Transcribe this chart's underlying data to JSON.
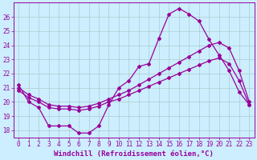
{
  "xlabel": "Windchill (Refroidissement éolien,°C)",
  "bg_color": "#cceeff",
  "line_color": "#990099",
  "grid_color": "#aacccc",
  "xlim": [
    -0.5,
    23.5
  ],
  "ylim": [
    17.5,
    27.0
  ],
  "xticks": [
    0,
    1,
    2,
    3,
    4,
    5,
    6,
    7,
    8,
    9,
    10,
    11,
    12,
    13,
    14,
    15,
    16,
    17,
    18,
    19,
    20,
    21,
    22,
    23
  ],
  "yticks": [
    18,
    19,
    20,
    21,
    22,
    23,
    24,
    25,
    26
  ],
  "series1_x": [
    0,
    1,
    2,
    3,
    4,
    5,
    6,
    7,
    8,
    9,
    10,
    11,
    12,
    13,
    14,
    15,
    16,
    17,
    18,
    19,
    20,
    21,
    22,
    23
  ],
  "series1_y": [
    21.2,
    20.0,
    19.6,
    18.3,
    18.3,
    18.3,
    17.8,
    17.8,
    18.3,
    19.8,
    21.0,
    21.5,
    22.5,
    22.7,
    24.5,
    26.2,
    26.6,
    26.2,
    25.7,
    24.4,
    23.3,
    22.2,
    20.7,
    19.8
  ],
  "series2_x": [
    0,
    1,
    2,
    3,
    4,
    5,
    6,
    7,
    8,
    9,
    10,
    11,
    12,
    13,
    14,
    15,
    16,
    17,
    18,
    19,
    20,
    21,
    22,
    23
  ],
  "series2_y": [
    21.0,
    20.5,
    20.2,
    19.8,
    19.7,
    19.7,
    19.6,
    19.7,
    19.9,
    20.2,
    20.5,
    20.8,
    21.2,
    21.6,
    22.0,
    22.4,
    22.8,
    23.2,
    23.6,
    24.0,
    24.2,
    23.8,
    22.2,
    20.0
  ],
  "series3_x": [
    0,
    1,
    2,
    3,
    4,
    5,
    6,
    7,
    8,
    9,
    10,
    11,
    12,
    13,
    14,
    15,
    16,
    17,
    18,
    19,
    20,
    21,
    22,
    23
  ],
  "series3_y": [
    20.8,
    20.3,
    20.0,
    19.6,
    19.5,
    19.5,
    19.4,
    19.5,
    19.7,
    20.0,
    20.2,
    20.5,
    20.8,
    21.1,
    21.4,
    21.7,
    22.0,
    22.3,
    22.6,
    22.9,
    23.1,
    22.7,
    21.5,
    19.8
  ],
  "marker": "D",
  "marker_size": 2.0,
  "linewidth": 0.9,
  "tick_fontsize": 5.5,
  "xlabel_fontsize": 6.5
}
